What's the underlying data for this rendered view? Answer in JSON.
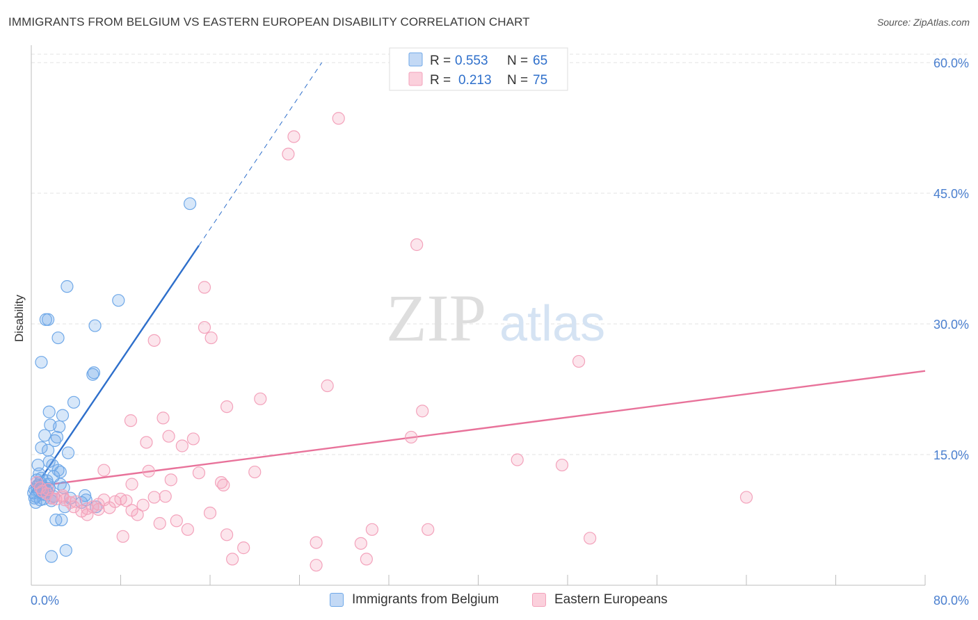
{
  "title": "IMMIGRANTS FROM BELGIUM VS EASTERN EUROPEAN DISABILITY CORRELATION CHART",
  "source": "Source: ZipAtlas.com",
  "watermark": {
    "zip": "ZIP",
    "atlas": "atlas"
  },
  "chart_data": {
    "type": "scatter",
    "ylabel": "Disability",
    "xlabel": "",
    "xlim": [
      0,
      80
    ],
    "ylim": [
      0,
      62
    ],
    "x_tick_labels": {
      "min": "0.0%",
      "max": "80.0%"
    },
    "y_ticks": [
      {
        "value": 15,
        "label": "15.0%"
      },
      {
        "value": 30,
        "label": "30.0%"
      },
      {
        "value": 45,
        "label": "45.0%"
      },
      {
        "value": 60,
        "label": "60.0%"
      }
    ],
    "stats_legend": [
      {
        "r_label": "R = ",
        "r_value": "0.553",
        "n_label": "N = ",
        "n_value": "65"
      },
      {
        "r_label": "R = ",
        "r_value": "0.213",
        "n_label": "N = ",
        "n_value": "75"
      }
    ],
    "series": [
      {
        "name": "Immigrants from Belgium",
        "color": "#6fa8e8",
        "line_color": "#2e6fcb",
        "trend": {
          "x0": 0,
          "y0": 10.6,
          "x1": 15,
          "y1": 39,
          "dash_to_x": 26,
          "dash_to_y": 60
        },
        "points": [
          [
            0.3,
            11.0
          ],
          [
            0.4,
            10.2
          ],
          [
            0.5,
            12.1
          ],
          [
            0.6,
            11.5
          ],
          [
            0.7,
            10.8
          ],
          [
            0.8,
            11.8
          ],
          [
            0.4,
            9.5
          ],
          [
            0.9,
            12.3
          ],
          [
            1.0,
            10.5
          ],
          [
            1.1,
            11.2
          ],
          [
            0.6,
            13.8
          ],
          [
            1.3,
            11.0
          ],
          [
            1.2,
            10.4
          ],
          [
            1.5,
            11.6
          ],
          [
            0.8,
            9.8
          ],
          [
            1.4,
            12.0
          ],
          [
            0.3,
            10.0
          ],
          [
            0.5,
            11.3
          ],
          [
            1.8,
            10.0
          ],
          [
            2.0,
            12.5
          ],
          [
            2.6,
            11.6
          ],
          [
            2.4,
            13.2
          ],
          [
            1.6,
            14.2
          ],
          [
            1.9,
            13.8
          ],
          [
            0.9,
            15.8
          ],
          [
            1.5,
            15.5
          ],
          [
            1.7,
            18.4
          ],
          [
            2.5,
            18.2
          ],
          [
            1.2,
            17.2
          ],
          [
            2.3,
            17.0
          ],
          [
            2.8,
            19.5
          ],
          [
            1.6,
            19.9
          ],
          [
            2.1,
            16.6
          ],
          [
            3.3,
            15.2
          ],
          [
            3.8,
            21.0
          ],
          [
            5.5,
            24.2
          ],
          [
            5.6,
            24.4
          ],
          [
            0.9,
            25.6
          ],
          [
            2.4,
            28.4
          ],
          [
            1.3,
            30.5
          ],
          [
            1.5,
            30.5
          ],
          [
            5.7,
            29.8
          ],
          [
            3.2,
            34.3
          ],
          [
            7.8,
            32.7
          ],
          [
            14.2,
            43.8
          ],
          [
            2.2,
            7.5
          ],
          [
            2.7,
            7.5
          ],
          [
            3.1,
            4.0
          ],
          [
            1.8,
            3.3
          ],
          [
            3.5,
            10.0
          ],
          [
            4.8,
            10.3
          ],
          [
            4.9,
            9.8
          ],
          [
            5.8,
            9.0
          ],
          [
            2.0,
            10.2
          ],
          [
            1.1,
            9.9
          ],
          [
            1.4,
            10.8
          ],
          [
            2.6,
            13.0
          ],
          [
            1.0,
            11.4
          ],
          [
            0.7,
            12.8
          ],
          [
            1.6,
            11.1
          ],
          [
            0.2,
            10.6
          ],
          [
            1.8,
            9.7
          ],
          [
            3.0,
            9.0
          ],
          [
            4.5,
            9.5
          ],
          [
            2.9,
            11.2
          ]
        ]
      },
      {
        "name": "Eastern Europeans",
        "color": "#f3a2bb",
        "line_color": "#e8729a",
        "trend": {
          "x0": 0,
          "y0": 11.3,
          "x1": 80,
          "y1": 24.6
        },
        "points": [
          [
            0.5,
            11.8
          ],
          [
            0.8,
            11.2
          ],
          [
            1.0,
            10.8
          ],
          [
            1.4,
            10.5
          ],
          [
            1.8,
            10.0
          ],
          [
            2.2,
            9.9
          ],
          [
            2.8,
            10.3
          ],
          [
            3.0,
            9.8
          ],
          [
            3.5,
            9.5
          ],
          [
            4.0,
            9.6
          ],
          [
            4.5,
            8.5
          ],
          [
            5.0,
            8.8
          ],
          [
            5.5,
            9.0
          ],
          [
            6.0,
            9.3
          ],
          [
            6.5,
            9.8
          ],
          [
            7.0,
            8.9
          ],
          [
            7.5,
            9.6
          ],
          [
            8.0,
            9.9
          ],
          [
            8.5,
            9.7
          ],
          [
            9.0,
            8.6
          ],
          [
            9.5,
            8.1
          ],
          [
            10.0,
            9.2
          ],
          [
            10.5,
            13.1
          ],
          [
            11.0,
            10.1
          ],
          [
            12.0,
            10.2
          ],
          [
            13.0,
            7.4
          ],
          [
            14.0,
            6.4
          ],
          [
            15.0,
            12.9
          ],
          [
            16.0,
            8.3
          ],
          [
            17.0,
            11.8
          ],
          [
            17.5,
            5.8
          ],
          [
            18.0,
            3.0
          ],
          [
            19.0,
            4.3
          ],
          [
            20.0,
            13.0
          ],
          [
            6.5,
            13.2
          ],
          [
            9.0,
            11.6
          ],
          [
            11.5,
            7.1
          ],
          [
            12.5,
            12.1
          ],
          [
            13.5,
            16.0
          ],
          [
            14.5,
            16.8
          ],
          [
            15.5,
            34.2
          ],
          [
            17.2,
            11.5
          ],
          [
            16.1,
            28.4
          ],
          [
            11.8,
            19.2
          ],
          [
            11.0,
            28.1
          ],
          [
            8.9,
            18.9
          ],
          [
            12.3,
            17.1
          ],
          [
            10.3,
            16.4
          ],
          [
            17.5,
            20.5
          ],
          [
            20.5,
            21.4
          ],
          [
            15.5,
            29.6
          ],
          [
            23.0,
            49.5
          ],
          [
            23.5,
            51.5
          ],
          [
            27.5,
            53.6
          ],
          [
            26.5,
            22.9
          ],
          [
            34.5,
            39.1
          ],
          [
            35.0,
            20.0
          ],
          [
            34.0,
            17.0
          ],
          [
            43.5,
            14.4
          ],
          [
            47.5,
            13.8
          ],
          [
            49.0,
            25.7
          ],
          [
            64.0,
            10.1
          ],
          [
            50.0,
            5.4
          ],
          [
            35.5,
            6.4
          ],
          [
            30.5,
            6.4
          ],
          [
            29.5,
            4.8
          ],
          [
            30.0,
            3.0
          ],
          [
            25.5,
            4.9
          ],
          [
            25.5,
            2.3
          ],
          [
            5.0,
            8.1
          ],
          [
            3.8,
            9.0
          ],
          [
            6.0,
            8.7
          ],
          [
            8.2,
            5.6
          ],
          [
            2.8,
            10.1
          ],
          [
            1.5,
            11.0
          ]
        ]
      }
    ]
  }
}
